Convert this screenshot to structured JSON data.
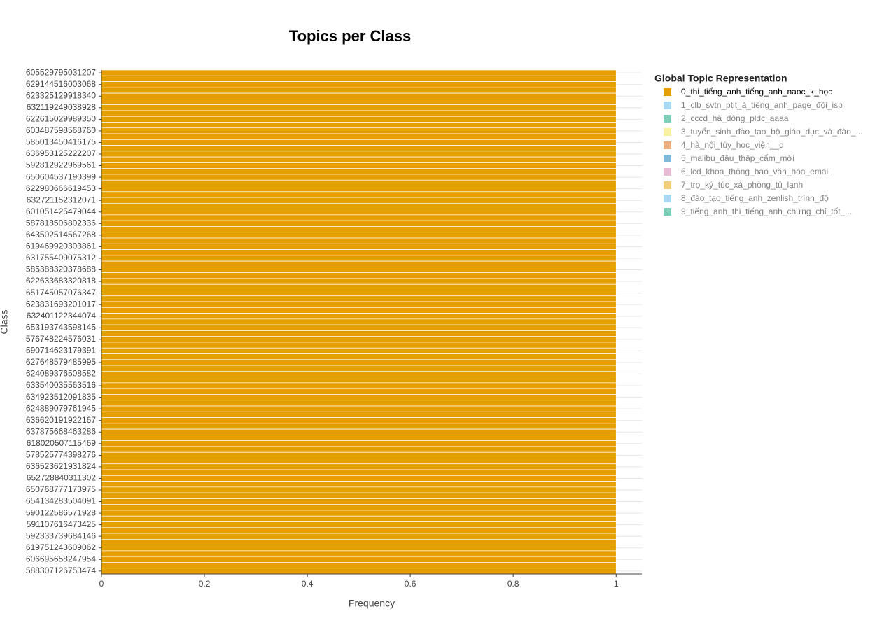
{
  "chart_data": {
    "type": "bar",
    "orientation": "horizontal",
    "title": "Topics per Class",
    "xlabel": "Frequency",
    "ylabel": "Class",
    "categories": [
      "605529795031207",
      null,
      "629144516003068",
      null,
      "623325129918340",
      null,
      "632119249038928",
      null,
      "622615029989350",
      null,
      "603487598568760",
      null,
      "585013450416175",
      null,
      "636953125222207",
      null,
      "592812922969561",
      null,
      "650604537190399",
      null,
      "622980666619453",
      null,
      "632721152312071",
      null,
      "601051425479044",
      null,
      "587818506802336",
      null,
      "643502514567268",
      null,
      "619469920303861",
      null,
      "631755409075312",
      null,
      "585388320378688",
      null,
      "622633683320818",
      null,
      "651745057076347",
      null,
      "623831693201017",
      null,
      "632401122344074",
      null,
      "653193743598145",
      null,
      "576748224576031",
      null,
      "590714623179391",
      null,
      "627648579485995",
      null,
      "624089376508582",
      null,
      "633540035563516",
      null,
      "634923512091835",
      null,
      "624889079761945",
      null,
      "636620191922167",
      null,
      "637875668463286",
      null,
      "618020507115469",
      null,
      "578525774398276",
      null,
      "636523621931824",
      null,
      "652728840311302",
      null,
      "650768777173975",
      null,
      "654134283504091",
      null,
      "590122586571928",
      null,
      "591107616473425",
      null,
      "592333739684146",
      null,
      "619751243609062",
      null,
      "606695658247954",
      null,
      "588307126753474"
    ],
    "legend_title": "Global Topic Representation",
    "series": [
      {
        "name": "0_thi_tiếng_anh_tiếng_anh_naoc_k_học",
        "color": "#E69F00",
        "visible": true,
        "values": [
          1,
          1,
          1,
          1,
          1,
          1,
          1,
          1,
          1,
          1,
          1,
          1,
          1,
          1,
          1,
          1,
          1,
          1,
          1,
          1,
          1,
          1,
          1,
          1,
          1,
          1,
          1,
          1,
          1,
          1,
          1,
          1,
          1,
          1,
          1,
          1,
          1,
          1,
          1,
          1,
          1,
          1,
          1,
          1,
          1,
          1,
          1,
          1,
          1,
          1,
          1,
          1,
          1,
          1,
          1,
          1,
          1,
          1,
          1,
          1,
          1,
          1,
          1,
          1,
          1,
          1,
          1,
          1,
          1,
          1,
          1,
          1,
          1,
          1,
          1,
          1,
          1,
          1,
          1,
          1,
          1,
          1,
          1,
          1,
          1,
          1,
          1
        ]
      },
      {
        "name": "1_clb_svtn_ptit_à_tiếng_anh_page_đội_isp",
        "color": "#56B4E9",
        "visible": false
      },
      {
        "name": "2_cccd_hà_đông_plđc_aaaa",
        "color": "#009E73",
        "visible": false
      },
      {
        "name": "3_tuyển_sinh_đào_tạo_bộ_giáo_dục_và_đào_...",
        "color": "#F0E442",
        "visible": false
      },
      {
        "name": "4_hà_nội_tùy_học_viện__d",
        "color": "#D55E00",
        "visible": false
      },
      {
        "name": "5_malibu_đậu_thập_cẩm_mời",
        "color": "#0072B2",
        "visible": false
      },
      {
        "name": "6_lcđ_khoa_thông_báo_văn_hóa_email",
        "color": "#CC79A7",
        "visible": false
      },
      {
        "name": "7_trọ_ký_túc_xá_phòng_tủ_lạnh",
        "color": "#E69F00",
        "visible": false
      },
      {
        "name": "8_đào_tạo_tiếng_anh_zenlish_trình_độ",
        "color": "#56B4E9",
        "visible": false
      },
      {
        "name": "9_tiếng_anh_thi_tiếng_anh_chứng_chỉ_tốt_...",
        "color": "#009E73",
        "visible": false
      }
    ],
    "xlim": [
      0,
      1.05
    ],
    "xticks": [
      0,
      0.2,
      0.4,
      0.6,
      0.8,
      1
    ],
    "grid": true
  }
}
